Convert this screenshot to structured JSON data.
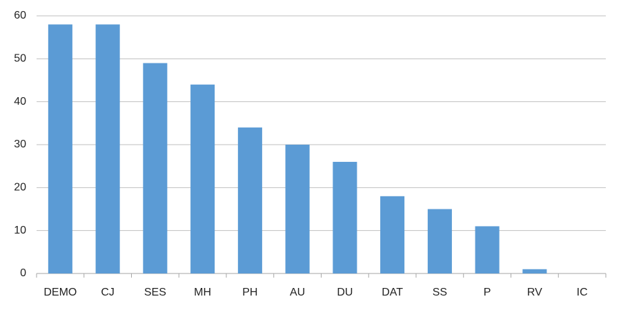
{
  "chart_data": {
    "type": "bar",
    "categories": [
      "DEMO",
      "CJ",
      "SES",
      "MH",
      "PH",
      "AU",
      "DU",
      "DAT",
      "SS",
      "P",
      "RV",
      "IC"
    ],
    "values": [
      58,
      58,
      49,
      44,
      34,
      30,
      26,
      18,
      15,
      11,
      1,
      0
    ],
    "color": "#5b9bd5",
    "ylim": [
      0,
      60
    ],
    "yticks": [
      0,
      10,
      20,
      30,
      40,
      50,
      60
    ],
    "grid": true
  }
}
